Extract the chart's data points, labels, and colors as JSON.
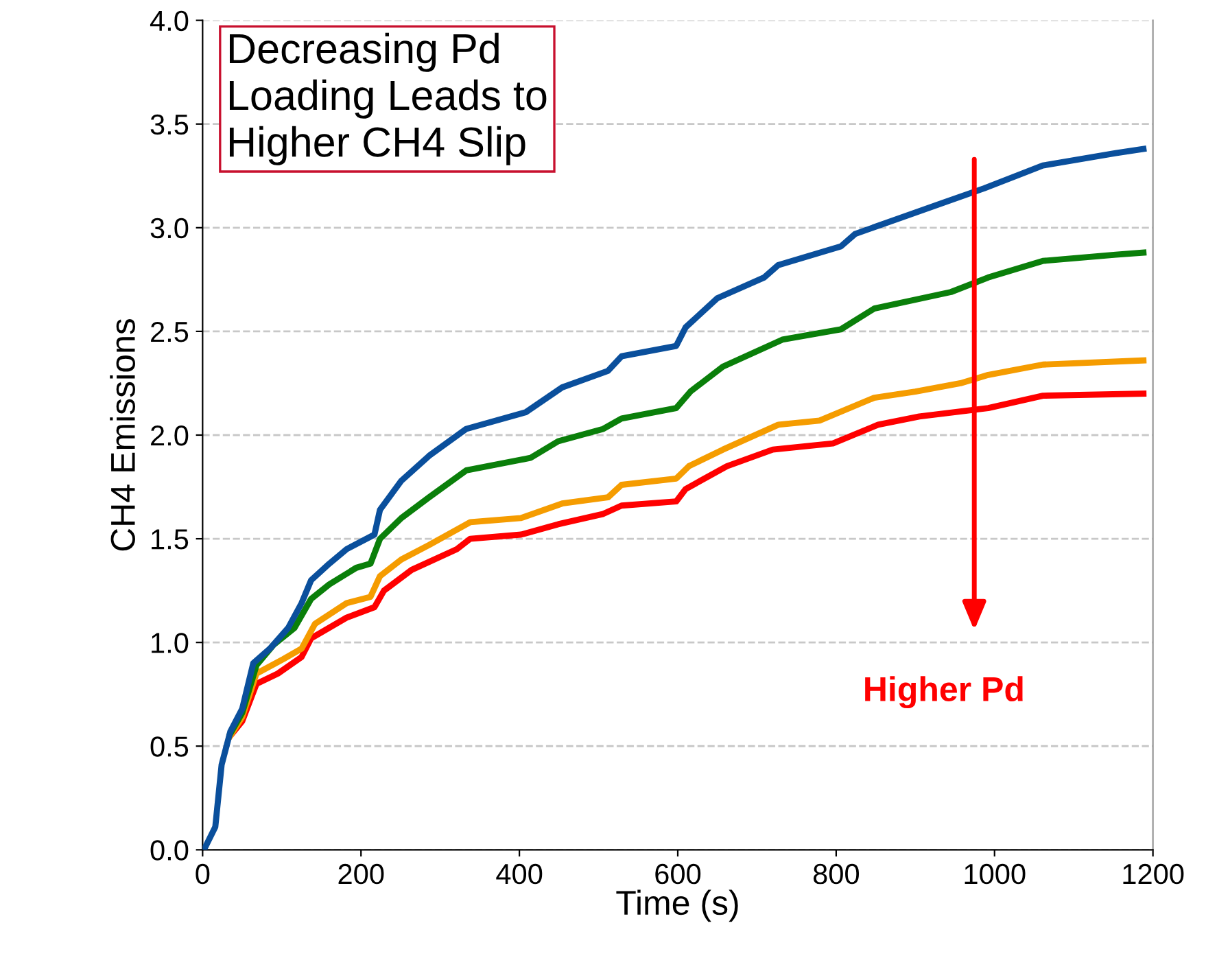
{
  "chart_data": {
    "type": "line",
    "xlabel": "Time (s)",
    "ylabel": "CH4 Emissions",
    "xlim": [
      0,
      1200
    ],
    "ylim": [
      0,
      4.0
    ],
    "xticks": [
      0,
      200,
      400,
      600,
      800,
      1000,
      1200
    ],
    "yticks": [
      {
        "value": 0,
        "label": "0.0"
      },
      {
        "value": 0.5,
        "label": "0.5"
      },
      {
        "value": 1,
        "label": "1.0"
      },
      {
        "value": 1.5,
        "label": "1.5"
      },
      {
        "value": 2,
        "label": "2.0"
      },
      {
        "value": 2.5,
        "label": "2.5"
      },
      {
        "value": 3,
        "label": "3.0"
      },
      {
        "value": 3.5,
        "label": "3.5"
      },
      {
        "value": 4,
        "label": "4.0"
      }
    ],
    "grid": "y",
    "marker": "none",
    "line_style": "solid",
    "annotations": [
      "Decreasing Pd\nLoading Leads to\nHigher CH4 Slip",
      "Higher Pd"
    ],
    "series": [
      {
        "color": "#0a4f9c",
        "x": [
          0,
          3,
          16,
          24,
          35,
          50,
          64,
          85,
          108,
          125,
          137,
          160,
          182,
          217,
          224,
          251,
          286,
          333,
          408,
          454,
          512,
          529,
          598,
          610,
          650,
          709,
          727,
          806,
          824,
          883,
          935,
          987,
          1061,
          1153,
          1188
        ],
        "values": [
          0,
          0.01,
          0.11,
          0.41,
          0.57,
          0.68,
          0.9,
          0.97,
          1.07,
          1.19,
          1.3,
          1.38,
          1.45,
          1.52,
          1.64,
          1.78,
          1.9,
          2.03,
          2.11,
          2.23,
          2.31,
          2.38,
          2.43,
          2.52,
          2.66,
          2.76,
          2.82,
          2.91,
          2.97,
          3.05,
          3.12,
          3.19,
          3.3,
          3.36,
          3.38
        ]
      },
      {
        "color": "#0a7f0a",
        "x": [
          35,
          50,
          68,
          90,
          116,
          137,
          160,
          194,
          212,
          224,
          251,
          286,
          333,
          414,
          449,
          506,
          529,
          598,
          616,
          657,
          732,
          806,
          848,
          945,
          992,
          1061,
          1153,
          1188
        ],
        "values": [
          0.56,
          0.66,
          0.89,
          0.99,
          1.07,
          1.21,
          1.28,
          1.36,
          1.38,
          1.5,
          1.6,
          1.7,
          1.83,
          1.89,
          1.97,
          2.03,
          2.08,
          2.13,
          2.21,
          2.33,
          2.46,
          2.51,
          2.61,
          2.69,
          2.76,
          2.84,
          2.87,
          2.88
        ]
      },
      {
        "color": "#f59c00",
        "x": [
          35,
          50,
          68,
          102,
          125,
          142,
          182,
          212,
          224,
          251,
          286,
          338,
          402,
          454,
          512,
          529,
          598,
          614,
          657,
          727,
          779,
          848,
          900,
          957,
          992,
          1061,
          1188
        ],
        "values": [
          0.55,
          0.64,
          0.85,
          0.92,
          0.97,
          1.09,
          1.19,
          1.22,
          1.32,
          1.4,
          1.47,
          1.58,
          1.6,
          1.67,
          1.7,
          1.76,
          1.79,
          1.85,
          1.93,
          2.05,
          2.07,
          2.18,
          2.21,
          2.25,
          2.29,
          2.34,
          2.36
        ]
      },
      {
        "color": "#ff0000",
        "x": [
          35,
          50,
          68,
          95,
          125,
          137,
          182,
          217,
          229,
          264,
          321,
          338,
          402,
          449,
          506,
          529,
          598,
          610,
          662,
          720,
          796,
          853,
          905,
          992,
          1061,
          1188
        ],
        "values": [
          0.55,
          0.62,
          0.8,
          0.85,
          0.93,
          1.02,
          1.12,
          1.17,
          1.25,
          1.35,
          1.45,
          1.5,
          1.52,
          1.57,
          1.62,
          1.66,
          1.68,
          1.74,
          1.85,
          1.93,
          1.96,
          2.05,
          2.09,
          2.13,
          2.19,
          2.2
        ]
      }
    ]
  }
}
